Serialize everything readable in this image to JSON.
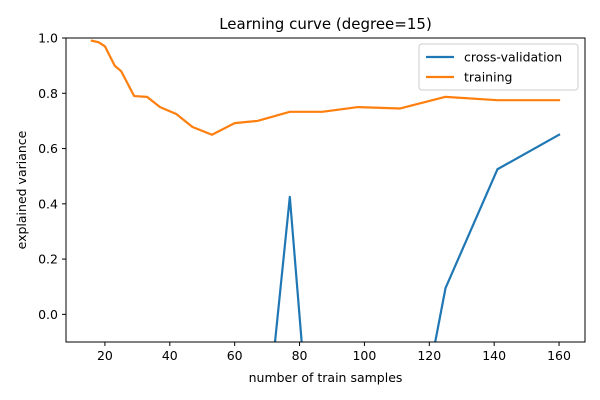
{
  "chart_data": {
    "type": "line",
    "title": "Learning curve (degree=15)",
    "xlabel": "number of train samples",
    "ylabel": "explained variance",
    "xlim": [
      8,
      168
    ],
    "ylim": [
      -0.1,
      1.0
    ],
    "xticks": [
      20,
      40,
      60,
      80,
      100,
      120,
      140,
      160
    ],
    "yticks": [
      0.0,
      0.2,
      0.4,
      0.6,
      0.8,
      1.0
    ],
    "xtick_labels": [
      "20",
      "40",
      "60",
      "80",
      "100",
      "120",
      "140",
      "160"
    ],
    "ytick_labels": [
      "0.0",
      "0.2",
      "0.4",
      "0.6",
      "0.8",
      "1.0"
    ],
    "grid": false,
    "legend_position": "top-right",
    "series": [
      {
        "name": "cross-validation",
        "color": "#1f77b4",
        "x": [
          72,
          77,
          81,
          121,
          125,
          141,
          160
        ],
        "y": [
          -0.15,
          0.425,
          -0.15,
          -0.15,
          0.095,
          0.525,
          0.65
        ]
      },
      {
        "name": "training",
        "color": "#ff7f0e",
        "x": [
          16,
          18,
          20,
          23,
          25,
          29,
          33,
          37,
          42,
          47,
          53,
          60,
          67,
          77,
          87,
          98,
          111,
          125,
          141,
          160
        ],
        "y": [
          0.99,
          0.985,
          0.97,
          0.9,
          0.88,
          0.79,
          0.787,
          0.75,
          0.725,
          0.678,
          0.65,
          0.692,
          0.7,
          0.733,
          0.733,
          0.75,
          0.745,
          0.787,
          0.775,
          0.775
        ]
      }
    ]
  }
}
